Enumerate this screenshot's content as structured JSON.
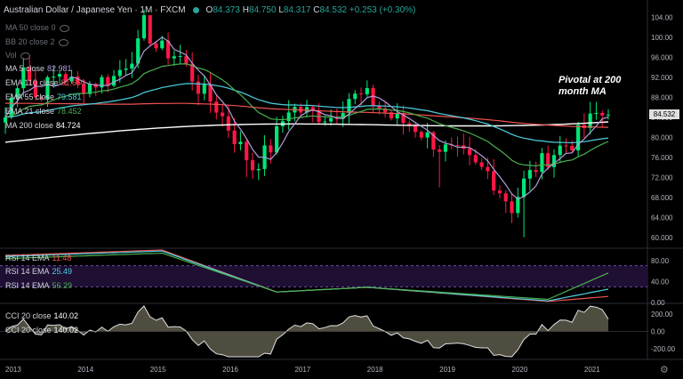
{
  "header": {
    "symbol_title": "Australian Dollar / Japanese Yen · 1M · FXCM",
    "o_label": "O",
    "o_value": "84.373",
    "h_label": "H",
    "h_value": "84.750",
    "l_label": "L",
    "l_value": "84.317",
    "c_label": "C",
    "c_value": "84.532",
    "change": "+0.253 (+0.30%)"
  },
  "indicators": [
    {
      "label": "MA 50 close 0",
      "value": "",
      "color": "#888888"
    },
    {
      "label": "BB 20 close 2",
      "value": "",
      "color": "#888888"
    },
    {
      "label": "Vol",
      "value": "",
      "color": "#888888"
    },
    {
      "label": "MA 5 close",
      "value": "82.981",
      "color": "#b39ddb"
    },
    {
      "label": "EMA 110 close",
      "value": "81.650",
      "color": "#ef5350"
    },
    {
      "label": "EMA 55 close",
      "value": "79.581",
      "color": "#4dd0e1"
    },
    {
      "label": "EMA 21 close",
      "value": "78.452",
      "color": "#4caf50"
    },
    {
      "label": "MA 200 close",
      "value": "84.724",
      "color": "#ffffff"
    }
  ],
  "annotation": {
    "line1": "Pivotal at 200",
    "line2": "month MA"
  },
  "last_price_tag": "84.532",
  "price_axis": {
    "ticks": [
      "104.00",
      "100.00",
      "96.000",
      "92.000",
      "88.000",
      "84.000",
      "80.000",
      "76.000",
      "72.000",
      "68.000",
      "64.000",
      "60.000"
    ]
  },
  "rsi_panel": {
    "labels": [
      {
        "name": "RSI 14 EMA",
        "value": "11.48",
        "color": "#ef5350"
      },
      {
        "name": "RSI 14 EMA",
        "value": "25.49",
        "color": "#4dd0e1"
      },
      {
        "name": "RSI 14 EMA",
        "value": "56.29",
        "color": "#4caf50"
      }
    ],
    "ticks": [
      "80.00",
      "40.00",
      "0.00"
    ]
  },
  "cci_panel": {
    "labels": [
      {
        "name": "CCI 20 close",
        "value": "140.02"
      },
      {
        "name": "CCI 20 close",
        "value": "140.02"
      }
    ],
    "ticks": [
      "200.00",
      "0.00",
      "-200.00"
    ]
  },
  "time_axis": {
    "ticks": [
      "2013",
      "2014",
      "2015",
      "2016",
      "2017",
      "2018",
      "2019",
      "2020",
      "2021"
    ]
  },
  "colors": {
    "up": "#00e676",
    "down": "#ff1744",
    "background": "#000000",
    "rsi_band": "#1e0f33"
  },
  "chart_data": {
    "type": "candlestick",
    "title": "Australian Dollar / Japanese Yen · 1M · FXCM",
    "x_range": [
      "2013-01",
      "2021-05"
    ],
    "ylim": [
      58,
      106
    ],
    "candles_yearly_approx": [
      {
        "x": "2013-01",
        "o": 85.0,
        "h": 90.0,
        "l": 82.0,
        "c": 88.0
      },
      {
        "x": "2013-06",
        "o": 95.0,
        "h": 99.0,
        "l": 90.0,
        "c": 92.0
      },
      {
        "x": "2014-01",
        "o": 92.0,
        "h": 95.0,
        "l": 89.0,
        "c": 94.0
      },
      {
        "x": "2014-12",
        "o": 96.0,
        "h": 102.8,
        "l": 95.0,
        "c": 98.5
      },
      {
        "x": "2015-06",
        "o": 92.0,
        "h": 95.0,
        "l": 86.0,
        "c": 88.0
      },
      {
        "x": "2016-06",
        "o": 76.0,
        "h": 80.0,
        "l": 72.5,
        "c": 78.0
      },
      {
        "x": "2017-06",
        "o": 84.0,
        "h": 90.0,
        "l": 82.0,
        "c": 87.0
      },
      {
        "x": "2018-01",
        "o": 88.0,
        "h": 90.0,
        "l": 84.0,
        "c": 85.0
      },
      {
        "x": "2019-01",
        "o": 78.0,
        "h": 80.0,
        "l": 70.5,
        "c": 76.0
      },
      {
        "x": "2020-03",
        "o": 72.0,
        "h": 73.0,
        "l": 60.0,
        "c": 66.0
      },
      {
        "x": "2021-01",
        "o": 80.0,
        "h": 85.0,
        "l": 79.0,
        "c": 84.0
      },
      {
        "x": "2021-05",
        "o": 84.373,
        "h": 84.75,
        "l": 84.317,
        "c": 84.532
      }
    ],
    "series": [
      {
        "name": "MA 200 close",
        "last": 84.724
      },
      {
        "name": "EMA 110 close",
        "last": 81.65
      },
      {
        "name": "EMA 55 close",
        "last": 79.581
      },
      {
        "name": "EMA 21 close",
        "last": 78.452
      },
      {
        "name": "MA 5 close",
        "last": 82.981
      }
    ]
  }
}
